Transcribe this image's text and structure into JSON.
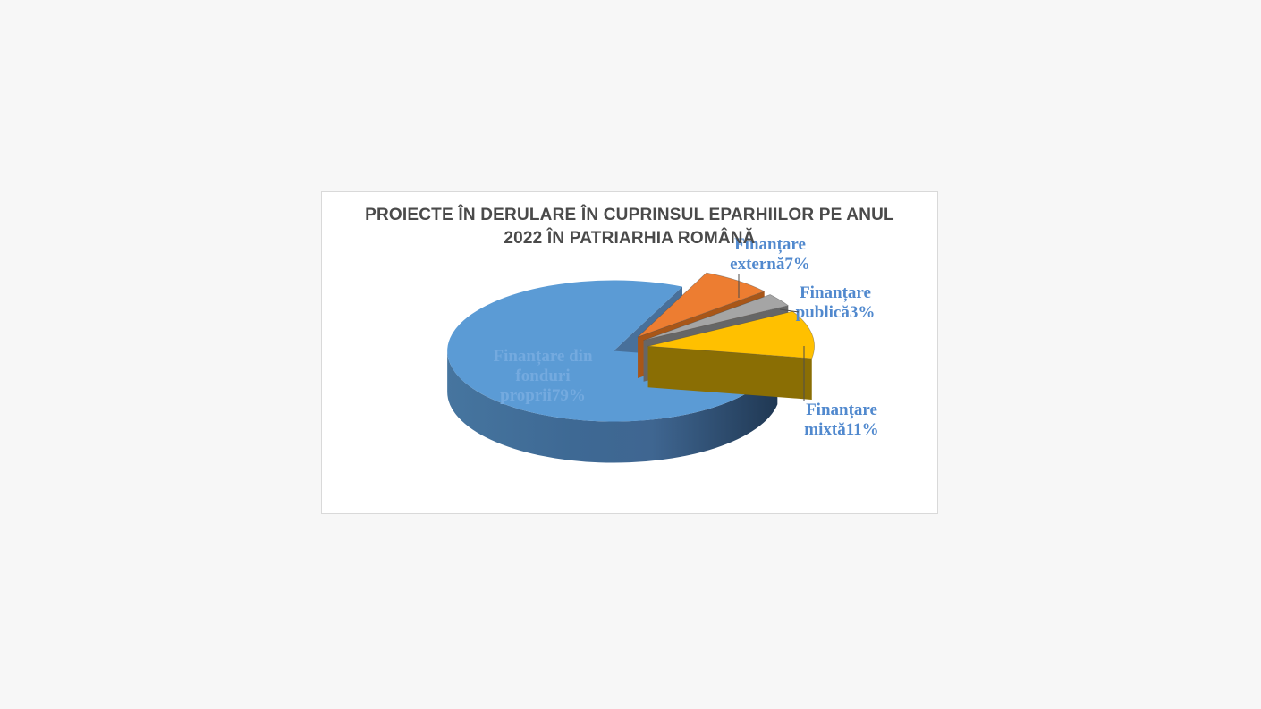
{
  "page": {
    "background": "#f7f7f7"
  },
  "card": {
    "background": "#ffffff",
    "border_color": "#d9d9d9"
  },
  "chart_data": {
    "type": "pie",
    "style": "3d-exploded",
    "title": "PROIECTE ÎN DERULARE ÎN CUPRINSUL EPARHIILOR PE ANUL 2022 ÎN PATRIARHIA ROMÂNĂ",
    "title_lines": [
      "PROIECTE ÎN DERULARE ÎN CUPRINSUL EPARHIILOR PE ANUL",
      "2022 ÎN PATRIARHIA ROMÂNĂ"
    ],
    "title_color": "#4a4a4a",
    "label_color": "#5189CE",
    "leader_line_color": "#4d4d4d",
    "legend_position": "none",
    "units": "percent",
    "rotation_deg": 100,
    "slices": [
      {
        "key": "fonduri-proprii",
        "label": "Finanțare din fonduri proprii",
        "pct": 79,
        "data_label": "Finanțare din fonduri proprii79%",
        "label_lines": [
          "Finanțare din",
          "fonduri",
          "proprii79%"
        ],
        "label_placement": "inside",
        "color": "#5B9BD5",
        "side_color": "#3E6690",
        "cut_color": "#48709A",
        "label_text_color": "#74AADF"
      },
      {
        "key": "externa",
        "label": "Finanțare externă",
        "pct": 7,
        "data_label": "Finanțare externă7%",
        "label_lines": [
          "Finanțare",
          "externă7%"
        ],
        "label_placement": "outside",
        "color": "#ED7D31",
        "side_color": "#AE5A1E",
        "cut_color": "#A85618"
      },
      {
        "key": "publica",
        "label": "Finanțare publică",
        "pct": 3,
        "data_label": "Finanțare publică3%",
        "label_lines": [
          "Finanțare",
          "publică3%"
        ],
        "label_placement": "outside",
        "color": "#A5A5A5",
        "side_color": "#6F6F6F",
        "cut_color": "#666666"
      },
      {
        "key": "mixta",
        "label": "Finanțare mixtă",
        "pct": 11,
        "data_label": "Finanțare mixtă11%",
        "label_lines": [
          "Finanțare",
          "mixtă11%"
        ],
        "label_placement": "outside",
        "color": "#FFC000",
        "side_color": "#8A6D00",
        "cut_color": "#8A6E04"
      }
    ]
  }
}
